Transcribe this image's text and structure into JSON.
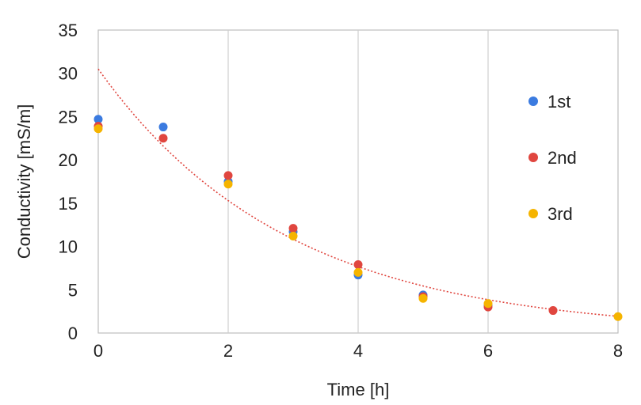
{
  "chart_data": {
    "type": "scatter",
    "title": "",
    "xlabel": "Time [h]",
    "ylabel": "Conductivity [mS/m]",
    "xlim": [
      0,
      8
    ],
    "ylim": [
      0,
      35
    ],
    "x_ticks": [
      0,
      2,
      4,
      6,
      8
    ],
    "y_ticks": [
      0,
      5,
      10,
      15,
      20,
      25,
      30,
      35
    ],
    "x_tick_labels": [
      "0",
      "2",
      "4",
      "6",
      "8"
    ],
    "y_tick_labels": [
      "0",
      "5",
      "10",
      "15",
      "20",
      "25",
      "30",
      "35"
    ],
    "grid": "vertical",
    "legend_position": "right",
    "series": [
      {
        "name": "1st",
        "color": "#3b7be0",
        "points": [
          [
            0,
            24.7
          ],
          [
            1,
            23.8
          ],
          [
            2,
            17.5
          ],
          [
            3,
            11.7
          ],
          [
            4,
            6.7
          ],
          [
            5,
            4.4
          ],
          [
            6,
            3.2
          ]
        ]
      },
      {
        "name": "2nd",
        "color": "#e0463f",
        "points": [
          [
            0,
            23.9
          ],
          [
            1,
            22.5
          ],
          [
            2,
            18.2
          ],
          [
            3,
            12.1
          ],
          [
            4,
            7.9
          ],
          [
            5,
            4.2
          ],
          [
            6,
            3.0
          ],
          [
            7,
            2.6
          ]
        ]
      },
      {
        "name": "3rd",
        "color": "#f5b400",
        "points": [
          [
            0,
            23.6
          ],
          [
            2,
            17.2
          ],
          [
            3,
            11.2
          ],
          [
            4,
            7.0
          ],
          [
            5,
            4.0
          ],
          [
            6,
            3.4
          ],
          [
            8,
            1.9
          ]
        ]
      }
    ],
    "trendline": {
      "type": "exponential",
      "color": "#e0463f",
      "style": "dotted",
      "a": 30.5,
      "b": -0.345
    }
  }
}
